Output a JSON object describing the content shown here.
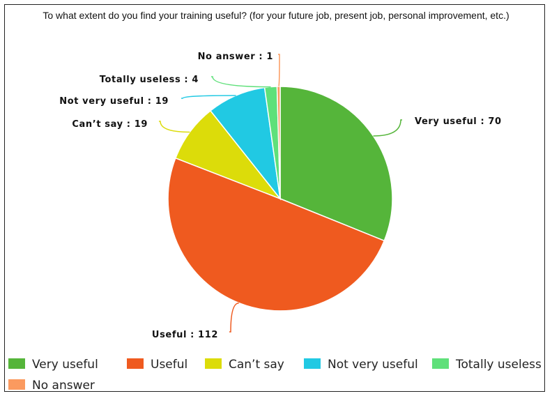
{
  "title": "To what extent do you find your training useful? (for your future job, present job, personal improvement, etc.)",
  "chart_data": {
    "type": "pie",
    "title": "To what extent do you find your training useful? (for your future job, present job, personal improvement, etc.)",
    "slices": [
      {
        "name": "Very useful",
        "value": 70,
        "label": "Very useful : 70",
        "color": "#55b53a"
      },
      {
        "name": "Useful",
        "value": 112,
        "label": "Useful : 112",
        "color": "#ef5a1f"
      },
      {
        "name": "Can’t say",
        "value": 19,
        "label": "Can’t say : 19",
        "color": "#dcdc0a"
      },
      {
        "name": "Not very useful",
        "value": 19,
        "label": "Not very useful : 19",
        "color": "#21c9e3"
      },
      {
        "name": "Totally useless",
        "value": 4,
        "label": "Totally useless : 4",
        "color": "#5fe07a"
      },
      {
        "name": "No answer",
        "value": 1,
        "label": "No answer : 1",
        "color": "#fb9a5f"
      }
    ],
    "legend_position": "bottom"
  }
}
